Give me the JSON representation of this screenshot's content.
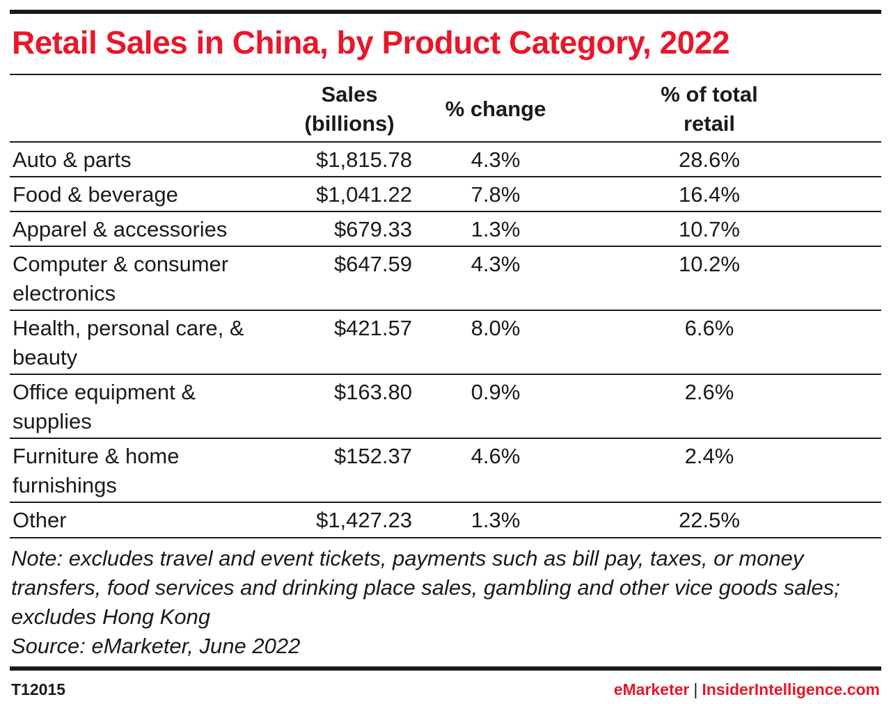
{
  "title": "Retail Sales in China, by Product Category, 2022",
  "columns": {
    "sales_line1": "Sales",
    "sales_line2": "(billions)",
    "change": "% change",
    "share_line1": "% of total",
    "share_line2": "retail"
  },
  "chart_data": {
    "type": "table",
    "title": "Retail Sales in China, by Product Category, 2022",
    "columns": [
      "Sales (billions)",
      "% change",
      "% of total retail"
    ],
    "rows": [
      {
        "category": "Auto & parts",
        "sales": "$1,815.78",
        "change": "4.3%",
        "share": "28.6%"
      },
      {
        "category": "Food & beverage",
        "sales": "$1,041.22",
        "change": "7.8%",
        "share": "16.4%"
      },
      {
        "category": "Apparel & accessories",
        "sales": "$679.33",
        "change": "1.3%",
        "share": "10.7%"
      },
      {
        "category": "Computer & consumer electronics",
        "sales": "$647.59",
        "change": "4.3%",
        "share": "10.2%"
      },
      {
        "category": "Health, personal care, & beauty",
        "sales": "$421.57",
        "change": "8.0%",
        "share": "6.6%"
      },
      {
        "category": "Office equipment & supplies",
        "sales": "$163.80",
        "change": "0.9%",
        "share": "2.6%"
      },
      {
        "category": "Furniture & home furnishings",
        "sales": "$152.37",
        "change": "4.6%",
        "share": "2.4%"
      },
      {
        "category": "Other",
        "sales": "$1,427.23",
        "change": "1.3%",
        "share": "22.5%"
      }
    ]
  },
  "note": "Note: excludes travel and event tickets, payments such as bill pay, taxes, or money transfers, food services and drinking place sales, gambling and other vice goods sales; excludes Hong Kong",
  "source": "Source: eMarketer, June 2022",
  "footer": {
    "id": "T12015",
    "brand": "eMarketer",
    "separator": "|",
    "site": "InsiderIntelligence.com"
  },
  "colors": {
    "accent": "#e8172a",
    "rule": "#1a1a1a"
  }
}
